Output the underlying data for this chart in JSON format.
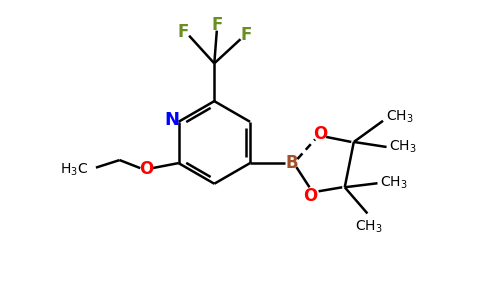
{
  "background_color": "#ffffff",
  "ring_color": "#000000",
  "N_color": "#0000ff",
  "O_color": "#ff0000",
  "B_color": "#a0522d",
  "F_color": "#6b8e23",
  "bond_lw": 1.8,
  "font_size": 11,
  "fig_width": 4.84,
  "fig_height": 3.0,
  "dpi": 100,
  "xlim": [
    0,
    9.5
  ],
  "ylim": [
    0,
    5.8
  ]
}
